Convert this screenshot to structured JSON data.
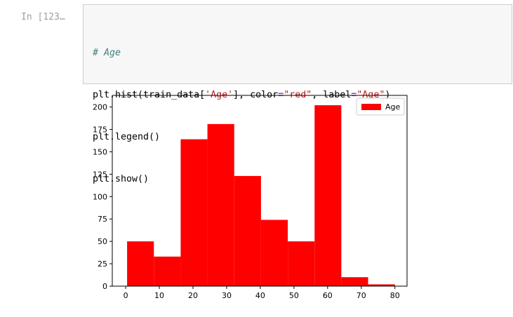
{
  "cell": {
    "prompt": "In [123…"
  },
  "code": {
    "line1": {
      "comment": "# Age"
    },
    "line2": {
      "a": "plt.hist(train_data[",
      "s1": "'Age'",
      "b": "], color",
      "eq1": "=",
      "s2": "\"red\"",
      "c": ", label",
      "eq2": "=",
      "s3": "\"Age\"",
      "d": ")"
    },
    "line3": "plt.legend()",
    "line4": "plt.show()"
  },
  "colors": {
    "bar": "#ff0000",
    "code_background": "#f7f7f7"
  },
  "chart_data": {
    "type": "bar",
    "title": "",
    "xlabel": "",
    "ylabel": "",
    "xlim": [
      -3.98,
      83.6
    ],
    "ylim": [
      0,
      213
    ],
    "xticks": [
      0,
      10,
      20,
      30,
      40,
      50,
      60,
      70,
      80
    ],
    "yticks": [
      0,
      25,
      50,
      75,
      100,
      125,
      150,
      175,
      200
    ],
    "bin_edges": [
      0.42,
      8.38,
      16.34,
      24.29,
      32.25,
      40.21,
      48.17,
      56.13,
      64.08,
      72.04,
      80.0
    ],
    "values": [
      50,
      33,
      164,
      181,
      123,
      74,
      50,
      202,
      10,
      2
    ],
    "series": [
      {
        "name": "Age",
        "values": [
          50,
          33,
          164,
          181,
          123,
          74,
          50,
          202,
          10,
          2
        ]
      }
    ],
    "legend": {
      "placement": "top-right",
      "label": "Age"
    },
    "grid": false
  }
}
